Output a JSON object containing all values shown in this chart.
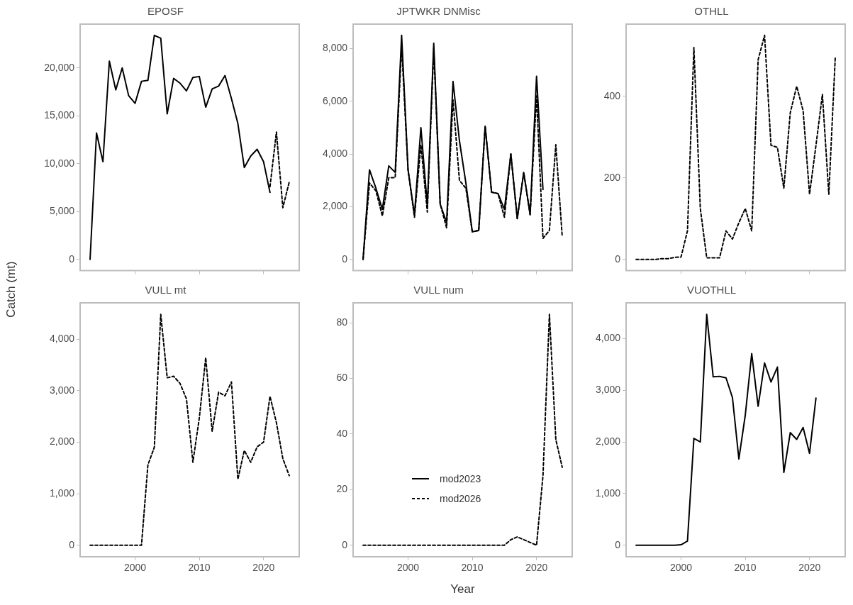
{
  "chart_data": [
    {
      "type": "line",
      "title": "EPOSF",
      "x": [
        1993,
        1994,
        1995,
        1996,
        1997,
        1998,
        1999,
        2000,
        2001,
        2002,
        2003,
        2004,
        2005,
        2006,
        2007,
        2008,
        2009,
        2010,
        2011,
        2012,
        2013,
        2014,
        2015,
        2016,
        2017,
        2018,
        2019,
        2020,
        2021,
        2022,
        2023,
        2024
      ],
      "series": [
        {
          "color": "#000000",
          "line_style": "solid",
          "values": [
            0,
            13200,
            10200,
            20700,
            17700,
            20000,
            17100,
            16300,
            18600,
            18700,
            23400,
            23100,
            15200,
            18900,
            18400,
            17600,
            19000,
            19100,
            15900,
            17800,
            18100,
            19200,
            16800,
            14200,
            9600,
            10800,
            11500,
            10200,
            7000,
            null,
            null,
            null
          ]
        },
        {
          "color": "#000000",
          "line_style": "dashed",
          "values": [
            null,
            null,
            null,
            null,
            null,
            null,
            null,
            null,
            null,
            null,
            null,
            null,
            null,
            null,
            null,
            null,
            null,
            null,
            null,
            null,
            null,
            null,
            null,
            null,
            null,
            null,
            null,
            null,
            7600,
            13300,
            5400,
            8100
          ]
        }
      ],
      "xlim": [
        1991.45,
        2025.55
      ],
      "xticks": [
        2000,
        2010,
        2020
      ],
      "ylim": [
        -1170,
        24570
      ],
      "yticks": [
        {
          "value": 0,
          "label": "0"
        },
        {
          "value": 5000,
          "label": "5,000"
        },
        {
          "value": 10000,
          "label": "10,000"
        },
        {
          "value": 15000,
          "label": "15,000"
        },
        {
          "value": 20000,
          "label": "20,000"
        }
      ],
      "tick_labels": "y",
      "grid": false,
      "legend": false
    },
    {
      "type": "line",
      "title": "JPTWKR DNMisc",
      "x": [
        1993,
        1994,
        1995,
        1996,
        1997,
        1998,
        1999,
        2000,
        2001,
        2002,
        2003,
        2004,
        2005,
        2006,
        2007,
        2008,
        2009,
        2010,
        2011,
        2012,
        2013,
        2014,
        2015,
        2016,
        2017,
        2018,
        2019,
        2020,
        2021,
        2022,
        2023,
        2024
      ],
      "series": [
        {
          "color": "#000000",
          "line_style": "solid",
          "values": [
            0,
            3400,
            2700,
            1900,
            3550,
            3300,
            8500,
            3400,
            1700,
            5000,
            2050,
            8200,
            2100,
            1400,
            6750,
            4500,
            2900,
            1050,
            1100,
            5050,
            2550,
            2500,
            1900,
            4000,
            1550,
            3300,
            1700,
            6950,
            2650,
            null,
            null,
            null
          ]
        },
        {
          "color": "#000000",
          "line_style": "dashed",
          "values": [
            0,
            2900,
            2600,
            1650,
            3100,
            3100,
            8100,
            3400,
            1600,
            4350,
            1800,
            8000,
            2100,
            1200,
            6050,
            3000,
            2700,
            1050,
            1100,
            5050,
            2550,
            2500,
            1600,
            4000,
            1550,
            3300,
            1700,
            6200,
            800,
            1100,
            4350,
            850
          ]
        }
      ],
      "xlim": [
        1991.45,
        2025.55
      ],
      "xticks": [
        2000,
        2010,
        2020
      ],
      "ylim": [
        -425,
        8925
      ],
      "yticks": [
        {
          "value": 0,
          "label": "0"
        },
        {
          "value": 2000,
          "label": "2,000"
        },
        {
          "value": 4000,
          "label": "4,000"
        },
        {
          "value": 6000,
          "label": "6,000"
        },
        {
          "value": 8000,
          "label": "8,000"
        }
      ],
      "tick_labels": "y",
      "grid": false,
      "legend": false
    },
    {
      "type": "line",
      "title": "OTHLL",
      "x": [
        1993,
        1994,
        1995,
        1996,
        1997,
        1998,
        1999,
        2000,
        2001,
        2002,
        2003,
        2004,
        2005,
        2006,
        2007,
        2008,
        2009,
        2010,
        2011,
        2012,
        2013,
        2014,
        2015,
        2016,
        2017,
        2018,
        2019,
        2020,
        2021,
        2022,
        2023,
        2024
      ],
      "series": [
        {
          "color": "#000000",
          "line_style": "dashed",
          "values": [
            0,
            0,
            0,
            0,
            2,
            2,
            5,
            6,
            70,
            520,
            125,
            4,
            4,
            4,
            70,
            50,
            90,
            125,
            70,
            490,
            550,
            280,
            275,
            175,
            360,
            425,
            365,
            160,
            280,
            405,
            160,
            495
          ]
        }
      ],
      "xlim": [
        1991.45,
        2025.55
      ],
      "xticks": [
        2000,
        2010,
        2020
      ],
      "ylim": [
        -27.5,
        577.5
      ],
      "yticks": [
        0,
        200,
        400
      ],
      "tick_labels": "y",
      "grid": false,
      "legend": false
    },
    {
      "type": "line",
      "title": "VULL mt",
      "ylabel": "Catch (mt)",
      "x": [
        1993,
        1994,
        1995,
        1996,
        1997,
        1998,
        1999,
        2000,
        2001,
        2002,
        2003,
        2004,
        2005,
        2006,
        2007,
        2008,
        2009,
        2010,
        2011,
        2012,
        2013,
        2014,
        2015,
        2016,
        2017,
        2018,
        2019,
        2020,
        2021,
        2022,
        2023,
        2024
      ],
      "series": [
        {
          "color": "#000000",
          "line_style": "dashed",
          "values": [
            0,
            0,
            0,
            0,
            0,
            0,
            0,
            0,
            0,
            1560,
            1900,
            4480,
            3250,
            3280,
            3140,
            2840,
            1610,
            2470,
            3640,
            2210,
            2970,
            2900,
            3170,
            1280,
            1840,
            1610,
            1910,
            2000,
            2890,
            2380,
            1680,
            1350
          ]
        }
      ],
      "xlim": [
        1991.45,
        2025.55
      ],
      "xticks": [
        2000,
        2010,
        2020
      ],
      "ylim": [
        -224,
        4704
      ],
      "yticks": [
        {
          "value": 0,
          "label": "0"
        },
        {
          "value": 1000,
          "label": "1,000"
        },
        {
          "value": 2000,
          "label": "2,000"
        },
        {
          "value": 3000,
          "label": "3,000"
        },
        {
          "value": 4000,
          "label": "4,000"
        }
      ],
      "grid": false,
      "legend": false
    },
    {
      "type": "line",
      "title": "VULL num",
      "xlabel": "Year",
      "x": [
        1993,
        1994,
        1995,
        1996,
        1997,
        1998,
        1999,
        2000,
        2001,
        2002,
        2003,
        2004,
        2005,
        2006,
        2007,
        2008,
        2009,
        2010,
        2011,
        2012,
        2013,
        2014,
        2015,
        2016,
        2017,
        2018,
        2019,
        2020,
        2021,
        2022,
        2023,
        2024
      ],
      "series": [
        {
          "name": "mod2023",
          "color": "#000000",
          "line_style": "solid",
          "values": [
            null,
            null,
            null,
            null,
            null,
            null,
            null,
            null,
            null,
            null,
            null,
            null,
            null,
            null,
            null,
            null,
            null,
            null,
            null,
            null,
            null,
            null,
            null,
            null,
            null,
            null,
            null,
            null,
            null,
            null,
            null,
            null
          ]
        },
        {
          "name": "mod2026",
          "color": "#000000",
          "line_style": "dashed",
          "values": [
            0,
            0,
            0,
            0,
            0,
            0,
            0,
            0,
            0,
            0,
            0,
            0,
            0,
            0,
            0,
            0,
            0,
            0,
            0,
            0,
            0,
            0,
            0,
            2,
            3,
            2,
            1,
            0,
            25,
            83,
            38,
            28
          ]
        }
      ],
      "xlim": [
        1991.45,
        2025.55
      ],
      "xticks": [
        2000,
        2010,
        2020
      ],
      "ylim": [
        -4.15,
        87.15
      ],
      "yticks": [
        0,
        20,
        40,
        60,
        80
      ],
      "grid": false,
      "legend": "left"
    },
    {
      "type": "line",
      "title": "VUOTHLL",
      "x": [
        1993,
        1994,
        1995,
        1996,
        1997,
        1998,
        1999,
        2000,
        2001,
        2002,
        2003,
        2004,
        2005,
        2006,
        2007,
        2008,
        2009,
        2010,
        2011,
        2012,
        2013,
        2014,
        2015,
        2016,
        2017,
        2018,
        2019,
        2020,
        2021
      ],
      "series": [
        {
          "color": "#000000",
          "line_style": "solid",
          "values": [
            0,
            0,
            0,
            0,
            0,
            0,
            0,
            10,
            80,
            2070,
            2000,
            4470,
            3260,
            3270,
            3240,
            2860,
            1670,
            2520,
            3710,
            2690,
            3530,
            3160,
            3450,
            1410,
            2180,
            2050,
            2280,
            1780,
            2850
          ]
        }
      ],
      "xlim": [
        1991.45,
        2025.55
      ],
      "xticks": [
        2000,
        2010,
        2020
      ],
      "ylim": [
        -223,
        4693
      ],
      "yticks": [
        {
          "value": 0,
          "label": "0"
        },
        {
          "value": 1000,
          "label": "1,000"
        },
        {
          "value": 2000,
          "label": "2,000"
        },
        {
          "value": 3000,
          "label": "3,000"
        },
        {
          "value": 4000,
          "label": "4,000"
        }
      ],
      "grid": false,
      "legend": false
    }
  ]
}
